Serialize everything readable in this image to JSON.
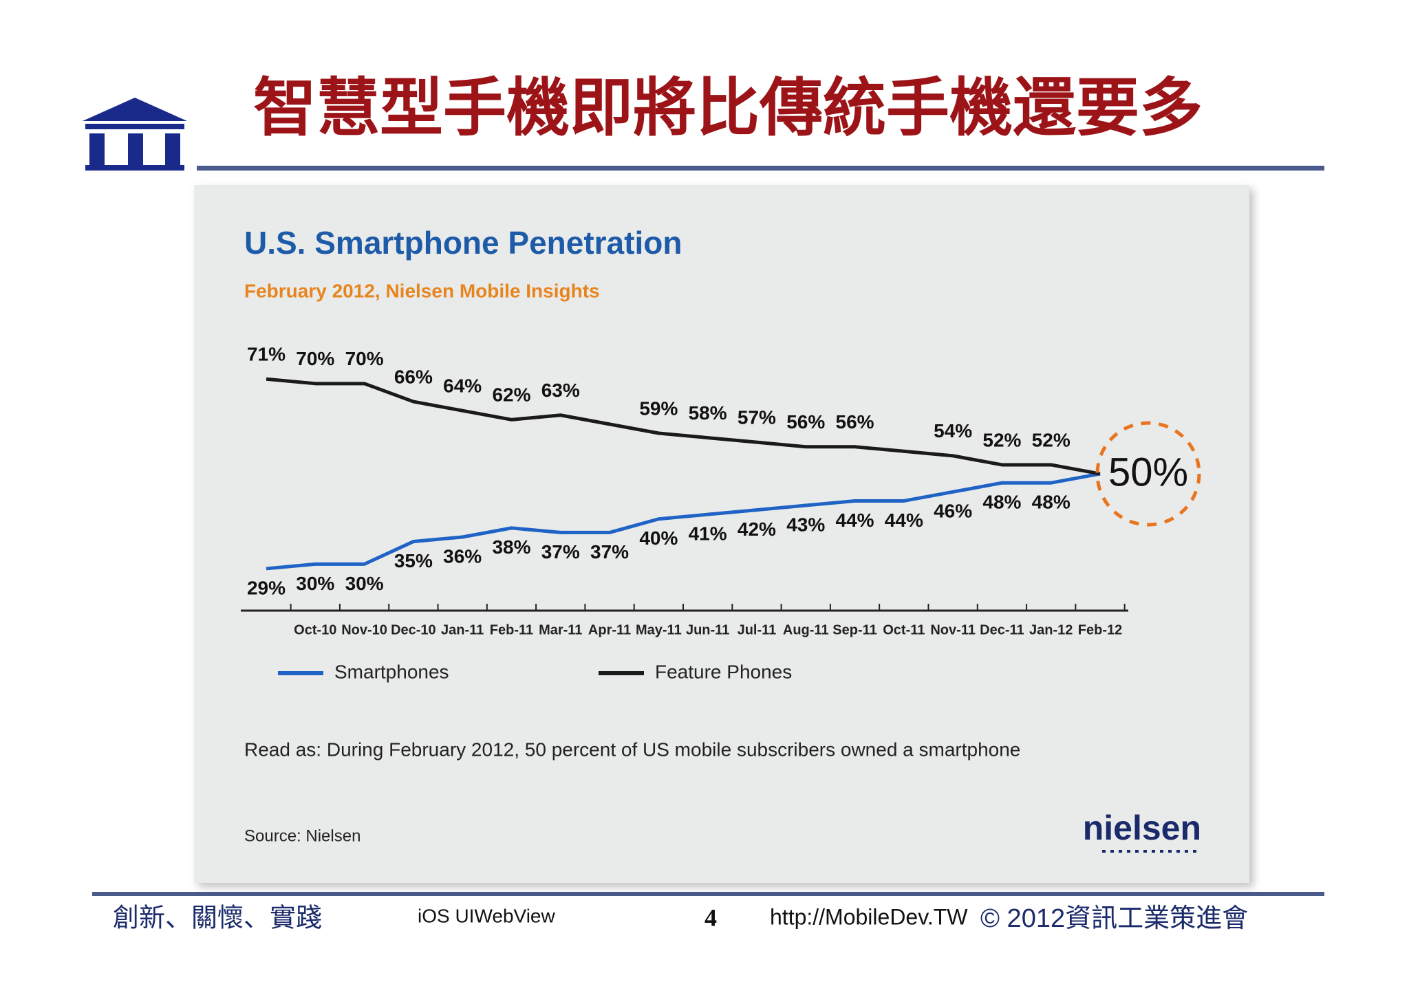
{
  "slide_title": "智慧型手機即將比傳統手機還要多",
  "chart_data": {
    "type": "line",
    "title": "U.S. Smartphone Penetration",
    "subtitle": "February 2012, Nielsen Mobile Insights",
    "categories": [
      null,
      "Oct-10",
      "Nov-10",
      "Dec-10",
      "Jan-11",
      "Feb-11",
      "Mar-11",
      "Apr-11",
      "May-11",
      "Jun-11",
      "Jul-11",
      "Aug-11",
      "Sep-11",
      "Oct-11",
      "Nov-11",
      "Dec-11",
      "Jan-12",
      "Feb-12"
    ],
    "ylim": [
      20,
      75
    ],
    "series": [
      {
        "name": "Smartphones",
        "color": "#1f63c6",
        "values": [
          29,
          30,
          30,
          35,
          36,
          38,
          37,
          37,
          40,
          41,
          42,
          43,
          44,
          44,
          46,
          48,
          48,
          50
        ],
        "value_labels": [
          "29%",
          "30%",
          "30%",
          "35%",
          "36%",
          "38%",
          "37%",
          "37%",
          "40%",
          "41%",
          "42%",
          "43%",
          "44%",
          "44%",
          "46%",
          "48%",
          "48%",
          null
        ]
      },
      {
        "name": "Feature Phones",
        "color": "#1a1a1a",
        "values": [
          71,
          70,
          70,
          66,
          64,
          62,
          63,
          61,
          59,
          58,
          57,
          56,
          56,
          55,
          54,
          52,
          52,
          50
        ],
        "value_labels": [
          "71%",
          "70%",
          "70%",
          "66%",
          "64%",
          "62%",
          "63%",
          null,
          "59%",
          "58%",
          "57%",
          "56%",
          "56%",
          null,
          "54%",
          "52%",
          "52%",
          null
        ]
      }
    ],
    "annotation": "50%",
    "note": "Read as: During February 2012, 50 percent of US mobile subscribers owned a smartphone",
    "source": "Source: Nielsen",
    "brand": "nielsen"
  },
  "footer": {
    "motto": "創新、關懷、實踐",
    "topic": "iOS UIWebView",
    "page": "4",
    "url": "http://MobileDev.TW",
    "copyright": "© 2012資訊工業策進會"
  }
}
